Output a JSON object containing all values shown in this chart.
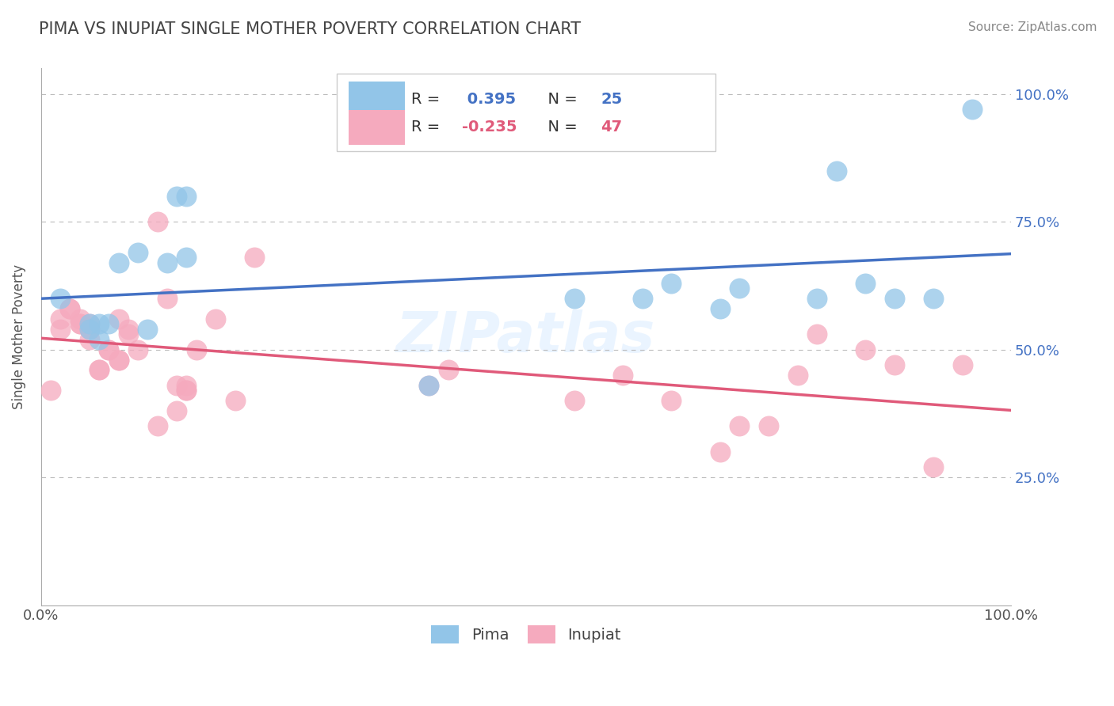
{
  "title": "PIMA VS INUPIAT SINGLE MOTHER POVERTY CORRELATION CHART",
  "source_text": "Source: ZipAtlas.com",
  "ylabel": "Single Mother Poverty",
  "xlim": [
    0.0,
    1.0
  ],
  "ylim": [
    0.0,
    1.05
  ],
  "ytick_positions": [
    0.25,
    0.5,
    0.75,
    1.0
  ],
  "ytick_labels": [
    "25.0%",
    "50.0%",
    "75.0%",
    "100.0%"
  ],
  "xtick_positions": [
    0.0,
    1.0
  ],
  "xtick_labels": [
    "0.0%",
    "100.0%"
  ],
  "pima_color": "#92C5E8",
  "inupiat_color": "#F5AABE",
  "pima_line_color": "#4472C4",
  "inupiat_line_color": "#E05A7A",
  "pima_R": 0.395,
  "pima_N": 25,
  "inupiat_R": -0.235,
  "inupiat_N": 47,
  "legend_label_pima": "Pima",
  "legend_label_inupiat": "Inupiat",
  "pima_x": [
    0.02,
    0.05,
    0.05,
    0.06,
    0.06,
    0.07,
    0.08,
    0.1,
    0.11,
    0.13,
    0.14,
    0.15,
    0.15,
    0.4,
    0.55,
    0.62,
    0.65,
    0.7,
    0.72,
    0.8,
    0.82,
    0.85,
    0.88,
    0.92,
    0.96
  ],
  "pima_y": [
    0.6,
    0.54,
    0.55,
    0.52,
    0.55,
    0.55,
    0.67,
    0.69,
    0.54,
    0.67,
    0.8,
    0.8,
    0.68,
    0.43,
    0.6,
    0.6,
    0.63,
    0.58,
    0.62,
    0.6,
    0.85,
    0.63,
    0.6,
    0.6,
    0.97
  ],
  "inupiat_x": [
    0.01,
    0.02,
    0.02,
    0.03,
    0.03,
    0.04,
    0.04,
    0.04,
    0.05,
    0.05,
    0.05,
    0.06,
    0.06,
    0.07,
    0.07,
    0.08,
    0.08,
    0.08,
    0.09,
    0.09,
    0.1,
    0.12,
    0.12,
    0.13,
    0.14,
    0.14,
    0.15,
    0.15,
    0.15,
    0.16,
    0.18,
    0.2,
    0.22,
    0.4,
    0.42,
    0.55,
    0.6,
    0.65,
    0.7,
    0.72,
    0.75,
    0.78,
    0.8,
    0.85,
    0.88,
    0.92,
    0.95
  ],
  "inupiat_y": [
    0.42,
    0.54,
    0.56,
    0.58,
    0.58,
    0.55,
    0.56,
    0.55,
    0.52,
    0.54,
    0.55,
    0.46,
    0.46,
    0.5,
    0.5,
    0.48,
    0.48,
    0.56,
    0.53,
    0.54,
    0.5,
    0.35,
    0.75,
    0.6,
    0.43,
    0.38,
    0.42,
    0.43,
    0.42,
    0.5,
    0.56,
    0.4,
    0.68,
    0.43,
    0.46,
    0.4,
    0.45,
    0.4,
    0.3,
    0.35,
    0.35,
    0.45,
    0.53,
    0.5,
    0.47,
    0.27,
    0.47
  ],
  "background_color": "#FFFFFF",
  "grid_color": "#BBBBBB",
  "title_color": "#444444",
  "source_color": "#888888",
  "watermark": "ZIPatlas"
}
